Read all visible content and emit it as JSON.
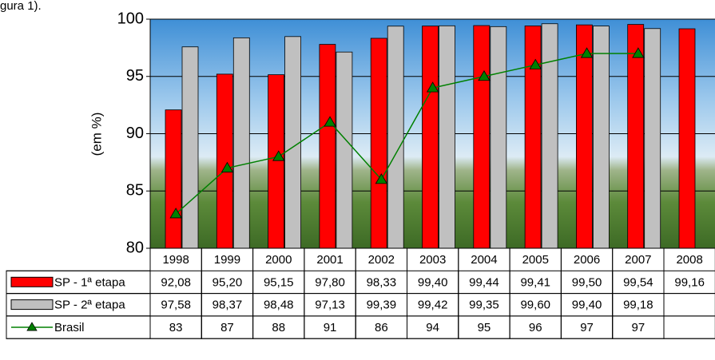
{
  "caption": "gura 1).",
  "chart_data": {
    "type": "bar",
    "ylabel": "(em %)",
    "categories": [
      "1998",
      "1999",
      "2000",
      "2001",
      "2002",
      "2003",
      "2004",
      "2005",
      "2006",
      "2007",
      "2008"
    ],
    "series": [
      {
        "name": "SP - 1ª etapa",
        "type": "bar",
        "color": "#ff0000",
        "values": [
          92.08,
          95.2,
          95.15,
          97.8,
          98.33,
          99.4,
          99.44,
          99.41,
          99.5,
          99.54,
          99.16
        ],
        "value_labels": [
          "92,08",
          "95,20",
          "95,15",
          "97,80",
          "98,33",
          "99,40",
          "99,44",
          "99,41",
          "99,50",
          "99,54",
          "99,16"
        ]
      },
      {
        "name": "SP - 2ª etapa",
        "type": "bar",
        "color": "#c0c0c0",
        "values": [
          97.58,
          98.37,
          98.48,
          97.13,
          99.39,
          99.42,
          99.35,
          99.6,
          99.4,
          99.18,
          null
        ],
        "value_labels": [
          "97,58",
          "98,37",
          "98,48",
          "97,13",
          "99,39",
          "99,42",
          "99,35",
          "99,60",
          "99,40",
          "99,18",
          null
        ]
      },
      {
        "name": "Brasil",
        "type": "line",
        "color": "#008000",
        "values": [
          83,
          87,
          88,
          91,
          86,
          94,
          95,
          96,
          97,
          97,
          null
        ]
      }
    ],
    "ylim": [
      80,
      100
    ],
    "yticks": [
      80,
      85,
      90,
      95,
      100
    ],
    "grid": true,
    "data_table": true
  }
}
